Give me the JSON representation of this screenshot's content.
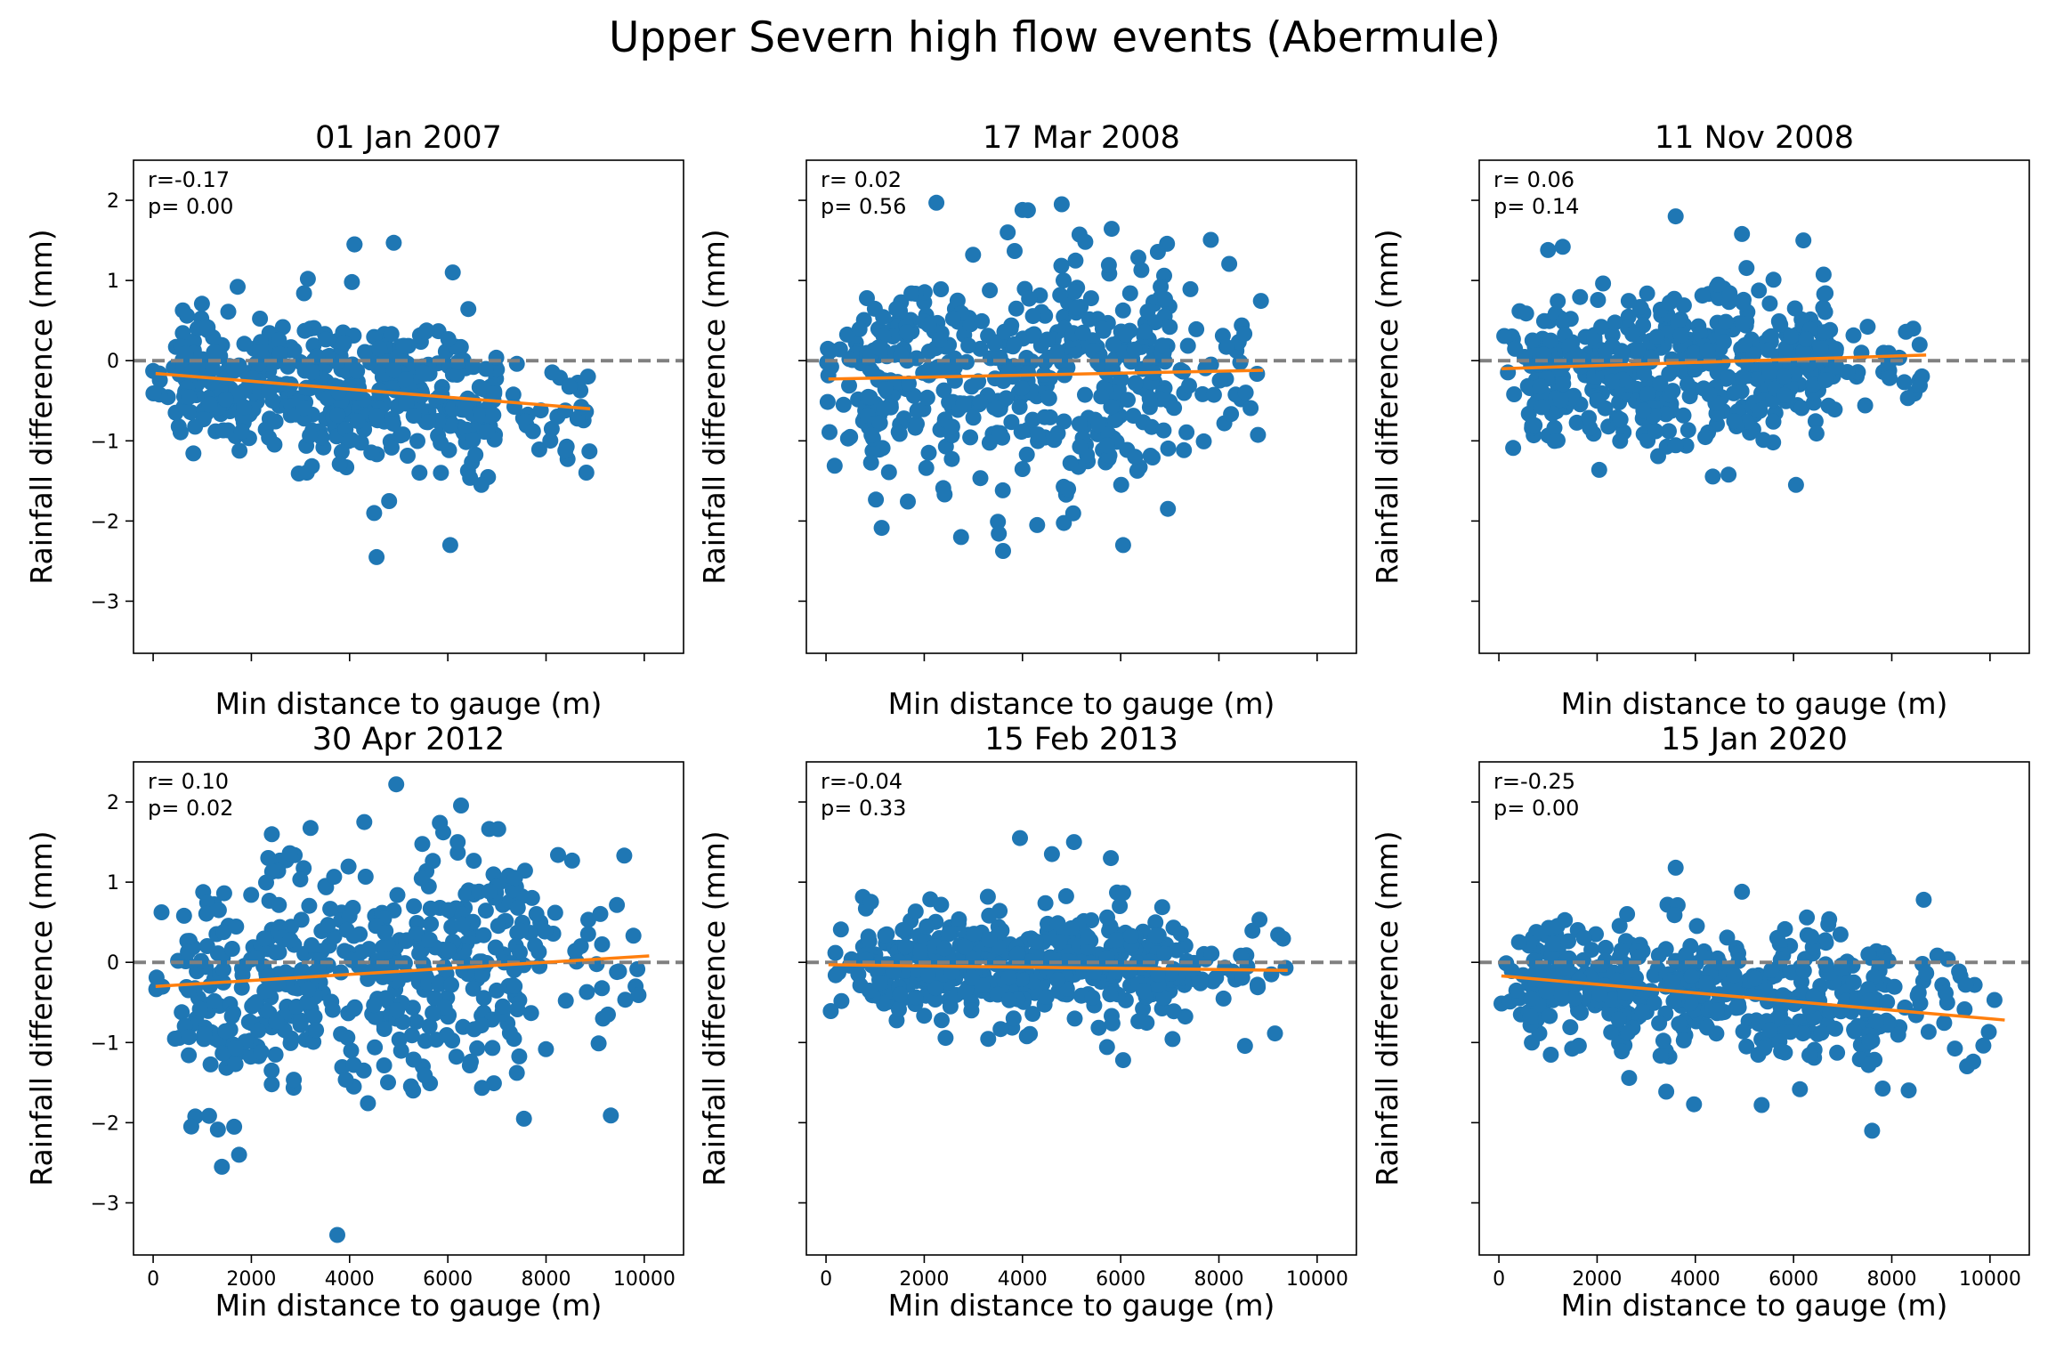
{
  "title": "Upper Severn high flow events (Abermule)",
  "colors": {
    "points": "#1f77b4",
    "fit_line": "#ff7f0e",
    "zero_line": "#808080",
    "axes": "#000000"
  },
  "chart_data": [
    {
      "type": "scatter",
      "title": "01 Jan 2007",
      "xlabel": "Min distance to gauge (m)",
      "ylabel": "Rainfall difference (mm)",
      "stat_r": "r=-0.17",
      "stat_p": "p= 0.00",
      "xlim": [
        -400,
        10800
      ],
      "ylim": [
        -3.65,
        2.5
      ],
      "x_ticks": [
        0,
        2000,
        4000,
        6000,
        8000,
        10000
      ],
      "y_ticks": [
        -3,
        -2,
        -1,
        0,
        1,
        2
      ],
      "show_x_tick_labels": false,
      "show_y_tick_labels": true,
      "hline_y": 0,
      "fit_line": {
        "x": [
          50,
          8900
        ],
        "y": [
          -0.16,
          -0.6
        ]
      },
      "series": [
        {
          "x": [
            50,
            8900
          ],
          "y": [
            -0.16,
            -0.6
          ]
        }
      ],
      "seed": 11,
      "sample": {
        "n": 480,
        "xmax": 8900,
        "mean_start": -0.16,
        "mean_end": -0.6,
        "sd": 0.42
      },
      "outliers": {
        "x": [
          4100,
          4500,
          4550,
          6050,
          4100,
          4900,
          6100,
          3150
        ],
        "y": [
          1.45,
          -1.9,
          -2.45,
          -2.3,
          1.45,
          1.47,
          1.1,
          1.02
        ]
      }
    },
    {
      "type": "scatter",
      "title": "17 Mar 2008",
      "xlabel": "Min distance to gauge (m)",
      "ylabel": "Rainfall difference (mm)",
      "stat_r": "r= 0.02",
      "stat_p": "p= 0.56",
      "xlim": [
        -400,
        10800
      ],
      "ylim": [
        -3.65,
        2.5
      ],
      "x_ticks": [
        0,
        2000,
        4000,
        6000,
        8000,
        10000
      ],
      "y_ticks": [
        -3,
        -2,
        -1,
        0,
        1,
        2
      ],
      "show_x_tick_labels": false,
      "show_y_tick_labels": false,
      "hline_y": 0,
      "fit_line": {
        "x": [
          50,
          8900
        ],
        "y": [
          -0.23,
          -0.12
        ]
      },
      "series": [
        {
          "x": [
            50,
            8900
          ],
          "y": [
            -0.23,
            -0.12
          ]
        }
      ],
      "seed": 23,
      "sample": {
        "n": 480,
        "xmax": 8900,
        "mean_start": -0.23,
        "mean_end": -0.12,
        "sd": 0.68
      },
      "outliers": {
        "x": [
          4000,
          4800,
          4300,
          6050,
          3700,
          2750
        ],
        "y": [
          1.88,
          1.95,
          -2.05,
          -2.3,
          1.6,
          -2.2
        ]
      }
    },
    {
      "type": "scatter",
      "title": "11 Nov 2008",
      "xlabel": "Min distance to gauge (m)",
      "ylabel": "Rainfall difference (mm)",
      "stat_r": "r= 0.06",
      "stat_p": "p= 0.14",
      "xlim": [
        -400,
        10800
      ],
      "ylim": [
        -3.65,
        2.5
      ],
      "x_ticks": [
        0,
        2000,
        4000,
        6000,
        8000,
        10000
      ],
      "y_ticks": [
        -3,
        -2,
        -1,
        0,
        1,
        2
      ],
      "show_x_tick_labels": false,
      "show_y_tick_labels": false,
      "hline_y": 0,
      "fit_line": {
        "x": [
          50,
          8700
        ],
        "y": [
          -0.1,
          0.07
        ]
      },
      "series": [
        {
          "x": [
            50,
            8700
          ],
          "y": [
            -0.1,
            0.07
          ]
        }
      ],
      "seed": 37,
      "sample": {
        "n": 480,
        "xmax": 8700,
        "mean_start": -0.1,
        "mean_end": 0.07,
        "sd": 0.45
      },
      "outliers": {
        "x": [
          3600,
          6050,
          4950,
          6200,
          1000,
          1300
        ],
        "y": [
          1.8,
          -1.55,
          1.58,
          1.5,
          1.38,
          1.42
        ]
      }
    },
    {
      "type": "scatter",
      "title": "30 Apr 2012",
      "xlabel": "Min distance to gauge (m)",
      "ylabel": "Rainfall difference (mm)",
      "stat_r": "r= 0.10",
      "stat_p": "p= 0.02",
      "xlim": [
        -400,
        10800
      ],
      "ylim": [
        -3.65,
        2.5
      ],
      "x_ticks": [
        0,
        2000,
        4000,
        6000,
        8000,
        10000
      ],
      "y_ticks": [
        -3,
        -2,
        -1,
        0,
        1,
        2
      ],
      "show_x_tick_labels": true,
      "show_y_tick_labels": true,
      "hline_y": 0,
      "fit_line": {
        "x": [
          50,
          10100
        ],
        "y": [
          -0.3,
          0.08
        ]
      },
      "series": [
        {
          "x": [
            50,
            10100
          ],
          "y": [
            -0.3,
            0.08
          ]
        }
      ],
      "seed": 41,
      "sample": {
        "n": 480,
        "xmax": 10100,
        "mean_start": -0.3,
        "mean_end": 0.08,
        "sd": 0.72
      },
      "outliers": {
        "x": [
          3750,
          4950,
          4300,
          1400,
          1750,
          1650,
          7550,
          6200
        ],
        "y": [
          -3.4,
          2.22,
          1.75,
          -2.55,
          -2.4,
          -2.05,
          -1.95,
          1.5
        ]
      }
    },
    {
      "type": "scatter",
      "title": "15 Feb 2013",
      "xlabel": "Min distance to gauge (m)",
      "ylabel": "Rainfall difference (mm)",
      "stat_r": "r=-0.04",
      "stat_p": "p= 0.33",
      "xlim": [
        -400,
        10800
      ],
      "ylim": [
        -3.65,
        2.5
      ],
      "x_ticks": [
        0,
        2000,
        4000,
        6000,
        8000,
        10000
      ],
      "y_ticks": [
        -3,
        -2,
        -1,
        0,
        1,
        2
      ],
      "show_x_tick_labels": true,
      "show_y_tick_labels": false,
      "hline_y": 0,
      "fit_line": {
        "x": [
          50,
          9400
        ],
        "y": [
          -0.03,
          -0.1
        ]
      },
      "series": [
        {
          "x": [
            50,
            9400
          ],
          "y": [
            -0.03,
            -0.1
          ]
        }
      ],
      "seed": 53,
      "sample": {
        "n": 480,
        "xmax": 9400,
        "mean_start": -0.03,
        "mean_end": -0.1,
        "sd": 0.33
      },
      "outliers": {
        "x": [
          3950,
          5050,
          6050,
          5800,
          4600
        ],
        "y": [
          1.55,
          1.5,
          -1.22,
          1.3,
          1.35
        ]
      }
    },
    {
      "type": "scatter",
      "title": "15 Jan 2020",
      "xlabel": "Min distance to gauge (m)",
      "ylabel": "Rainfall difference (mm)",
      "stat_r": "r=-0.25",
      "stat_p": "p= 0.00",
      "xlim": [
        -400,
        10800
      ],
      "ylim": [
        -3.65,
        2.5
      ],
      "x_ticks": [
        0,
        2000,
        4000,
        6000,
        8000,
        10000
      ],
      "y_ticks": [
        -3,
        -2,
        -1,
        0,
        1,
        2
      ],
      "show_x_tick_labels": true,
      "show_y_tick_labels": false,
      "hline_y": 0,
      "fit_line": {
        "x": [
          50,
          10300
        ],
        "y": [
          -0.17,
          -0.72
        ]
      },
      "series": [
        {
          "x": [
            50,
            10300
          ],
          "y": [
            -0.17,
            -0.72
          ]
        }
      ],
      "seed": 67,
      "sample": {
        "n": 480,
        "xmax": 10300,
        "mean_start": -0.17,
        "mean_end": -0.72,
        "sd": 0.38
      },
      "outliers": {
        "x": [
          3600,
          7600,
          8650,
          5350,
          4950
        ],
        "y": [
          1.18,
          -2.1,
          0.78,
          -1.78,
          0.88
        ]
      }
    }
  ]
}
